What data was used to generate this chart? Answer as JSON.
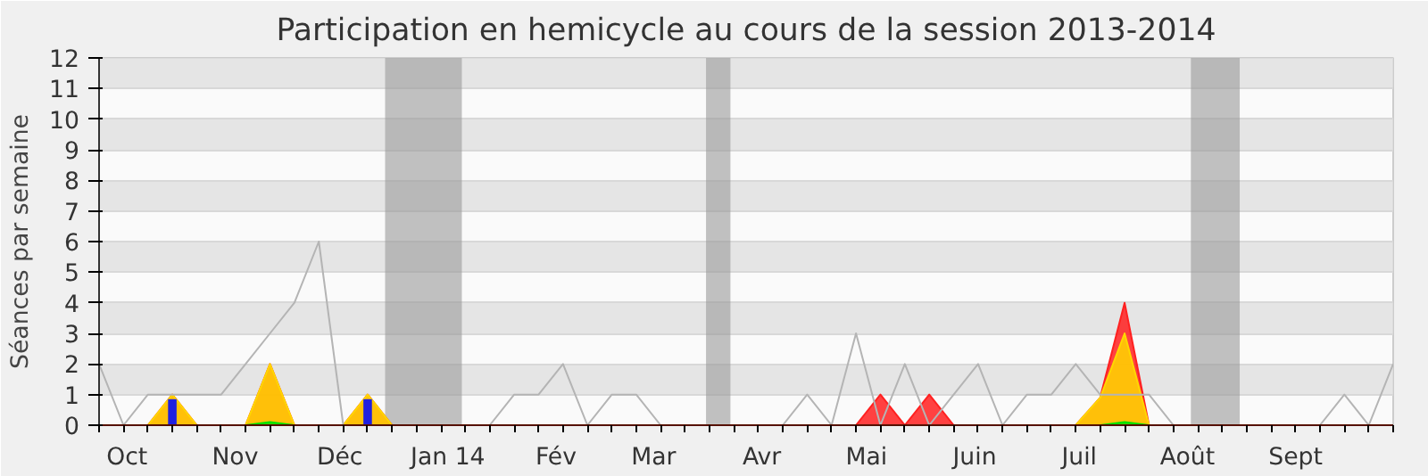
{
  "chart_data": {
    "type": "line",
    "title": "Participation en hemicycle au cours de la session 2013-2014",
    "ylabel": "Séances par semaine",
    "x": [
      "2013-09-23",
      "2013-09-30",
      "2013-10-07",
      "2013-10-14",
      "2013-10-21",
      "2013-10-28",
      "2013-11-04",
      "2013-11-11",
      "2013-11-18",
      "2013-11-25",
      "2013-12-02",
      "2013-12-09",
      "2013-12-16",
      "2013-12-23",
      "2013-12-30",
      "2014-01-06",
      "2014-01-13",
      "2014-01-20",
      "2014-01-27",
      "2014-02-03",
      "2014-02-10",
      "2014-02-17",
      "2014-02-24",
      "2014-03-03",
      "2014-03-10",
      "2014-03-17",
      "2014-03-24",
      "2014-03-31",
      "2014-04-07",
      "2014-04-14",
      "2014-04-21",
      "2014-04-28",
      "2014-05-05",
      "2014-05-12",
      "2014-05-19",
      "2014-05-26",
      "2014-06-02",
      "2014-06-09",
      "2014-06-16",
      "2014-06-23",
      "2014-06-30",
      "2014-07-07",
      "2014-07-14",
      "2014-07-21",
      "2014-07-28",
      "2014-08-04",
      "2014-08-11",
      "2014-08-18",
      "2014-08-25",
      "2014-09-01",
      "2014-09-08",
      "2014-09-15",
      "2014-09-22",
      "2014-09-29"
    ],
    "series": [
      {
        "color": "#b4b4b4",
        "values": [
          2,
          0,
          1,
          1,
          1,
          1,
          2,
          3,
          4,
          6,
          0,
          0,
          0,
          0,
          0,
          0,
          0,
          1,
          1,
          2,
          0,
          1,
          1,
          0,
          0,
          0,
          0,
          0,
          0,
          1,
          0,
          3,
          0,
          2,
          0,
          1,
          2,
          0,
          1,
          1,
          2,
          1,
          1,
          1,
          0,
          0,
          0,
          0,
          0,
          0,
          0,
          1,
          0,
          2
        ]
      },
      {
        "type": "area",
        "color": "#ff2020",
        "values": [
          0,
          0,
          0,
          1,
          0,
          0,
          0,
          2,
          0,
          0,
          0,
          1,
          0,
          0,
          0,
          0,
          0,
          0,
          0,
          0,
          0,
          0,
          0,
          0,
          0,
          0,
          0,
          0,
          0,
          0,
          0,
          0,
          1,
          0,
          1,
          0,
          0,
          0,
          0,
          0,
          0,
          0.9,
          4,
          0,
          0,
          0,
          0,
          0,
          0,
          0,
          0,
          0,
          0,
          0
        ]
      },
      {
        "type": "area",
        "color": "#ffd700",
        "values": [
          0,
          0,
          0,
          1,
          0,
          0,
          0,
          2,
          0,
          0,
          0,
          1,
          0,
          0,
          0,
          0,
          0,
          0,
          0,
          0,
          0,
          0,
          0,
          0,
          0,
          0,
          0,
          0,
          0,
          0,
          0,
          0,
          0,
          0,
          0,
          0,
          0,
          0,
          0,
          0,
          0,
          0.9,
          3,
          0,
          0,
          0,
          0,
          0,
          0,
          0,
          0,
          0,
          0,
          0
        ]
      },
      {
        "type": "area",
        "color": "#00e000",
        "values": [
          0,
          0,
          0,
          0,
          0,
          0,
          0,
          0.1,
          0,
          0,
          0,
          0,
          0,
          0,
          0,
          0,
          0,
          0,
          0,
          0,
          0,
          0,
          0,
          0,
          0,
          0,
          0,
          0,
          0,
          0,
          0,
          0,
          0,
          0,
          0,
          0,
          0,
          0,
          0,
          0,
          0,
          0,
          0.1,
          0,
          0,
          0,
          0,
          0,
          0,
          0,
          0,
          0,
          0,
          0
        ]
      },
      {
        "type": "bar",
        "color": "#2020e0",
        "values": [
          null,
          null,
          null,
          0.85,
          null,
          null,
          null,
          null,
          null,
          null,
          null,
          0.85,
          null,
          null,
          null,
          null,
          null,
          null,
          null,
          null,
          null,
          null,
          null,
          null,
          null,
          null,
          null,
          null,
          null,
          null,
          null,
          null,
          null,
          null,
          null,
          null,
          null,
          null,
          null,
          null,
          null,
          null,
          null,
          null,
          null,
          null,
          null,
          null,
          null,
          null,
          null,
          null,
          null,
          null
        ]
      }
    ],
    "xlim": [
      "2013-09-23",
      "2014-09-29"
    ],
    "xticks": [
      {
        "value": "2013-10-01",
        "label": "Oct"
      },
      {
        "value": "2013-11-01",
        "label": "Nov"
      },
      {
        "value": "2013-12-01",
        "label": "Déc"
      },
      {
        "value": "2014-01-01",
        "label": "Jan 14"
      },
      {
        "value": "2014-02-01",
        "label": "Fév"
      },
      {
        "value": "2014-03-01",
        "label": "Mar"
      },
      {
        "value": "2014-04-01",
        "label": "Avr"
      },
      {
        "value": "2014-05-01",
        "label": "Mai"
      },
      {
        "value": "2014-06-01",
        "label": "Juin"
      },
      {
        "value": "2014-07-01",
        "label": "Juil"
      },
      {
        "value": "2014-08-01",
        "label": "Août"
      },
      {
        "value": "2014-09-01",
        "label": "Sept"
      }
    ],
    "ylim": [
      0,
      12
    ],
    "yticks": [
      0,
      1,
      2,
      3,
      4,
      5,
      6,
      7,
      8,
      9,
      10,
      11,
      12
    ],
    "bands": [
      {
        "axis": "x",
        "from": "2013-12-14",
        "to": "2014-01-05"
      },
      {
        "axis": "x",
        "from": "2014-03-16",
        "to": "2014-03-23"
      },
      {
        "axis": "x",
        "from": "2014-08-02",
        "to": "2014-08-16"
      }
    ],
    "grid": "y"
  }
}
